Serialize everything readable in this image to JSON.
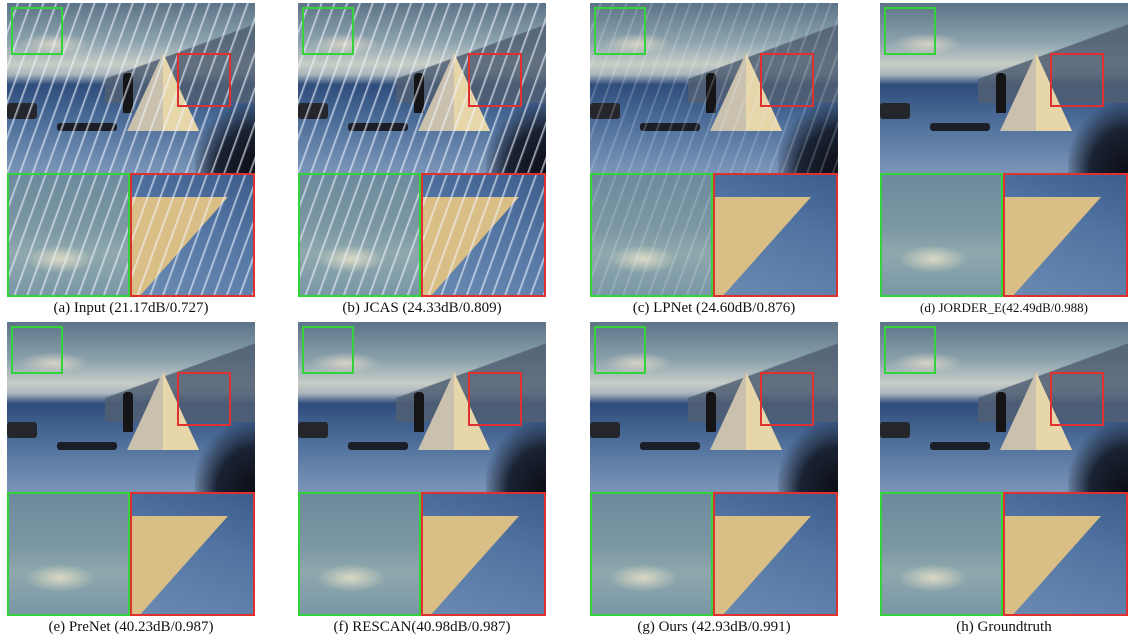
{
  "panels": [
    {
      "caption": "(a) Input (21.17dB/0.727)",
      "rain": "heavy"
    },
    {
      "caption": "(b) JCAS (24.33dB/0.809)",
      "rain": "heavy"
    },
    {
      "caption": "(c) LPNet (24.60dB/0.876)",
      "rain": "light"
    },
    {
      "caption": "(d) JORDER_E(42.49dB/0.988)",
      "rain": "none"
    },
    {
      "caption": "(e) PreNet (40.23dB/0.987)",
      "rain": "none"
    },
    {
      "caption": "(f) RESCAN(40.98dB/0.987)",
      "rain": "none"
    },
    {
      "caption": "(g) Ours (42.93dB/0.991)",
      "rain": "none"
    },
    {
      "caption": "(h) Groundtruth",
      "rain": "none"
    }
  ],
  "colors": {
    "green_box": "#33d43a",
    "red_box": "#e03131"
  }
}
